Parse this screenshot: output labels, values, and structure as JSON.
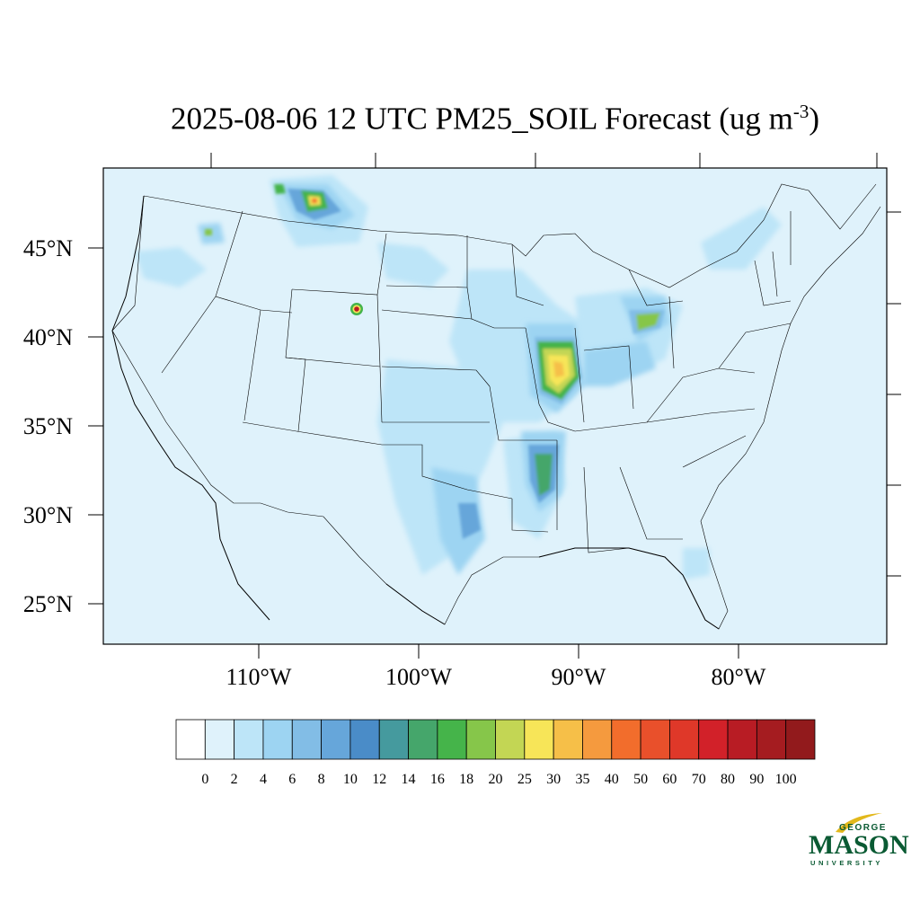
{
  "map": {
    "title_main": "2025-08-06 12 UTC PM25_SOIL Forecast (ug m",
    "title_exp": "-3",
    "title_close": ")",
    "lat_labels": [
      {
        "text": "45°N",
        "lat": 45
      },
      {
        "text": "40°N",
        "lat": 40
      },
      {
        "text": "35°N",
        "lat": 35
      },
      {
        "text": "30°N",
        "lat": 30
      },
      {
        "text": "25°N",
        "lat": 25
      }
    ],
    "lon_labels": [
      {
        "text": "110°W",
        "lon": -110
      },
      {
        "text": "100°W",
        "lon": -100
      },
      {
        "text": "90°W",
        "lon": -90
      },
      {
        "text": "80°W",
        "lon": -80
      }
    ],
    "background_color": "#dff2fb"
  },
  "colorbar": {
    "labels": [
      "0",
      "2",
      "4",
      "6",
      "8",
      "10",
      "12",
      "14",
      "16",
      "18",
      "20",
      "25",
      "30",
      "35",
      "40",
      "50",
      "60",
      "70",
      "80",
      "90",
      "100"
    ],
    "colors": [
      "#ffffff",
      "#dff2fb",
      "#bde5f8",
      "#9dd4f2",
      "#82bde6",
      "#66a6da",
      "#4a8cc8",
      "#459a9e",
      "#45a66b",
      "#45b44a",
      "#86c64a",
      "#c3d654",
      "#f7e558",
      "#f6bf48",
      "#f59a3e",
      "#f26d2c",
      "#e9502b",
      "#df3829",
      "#d22129",
      "#b81c24",
      "#a51c20",
      "#921a1c"
    ]
  },
  "logo": {
    "george": "GEORGE",
    "mason": "MASON",
    "university": "UNIVERSITY"
  }
}
